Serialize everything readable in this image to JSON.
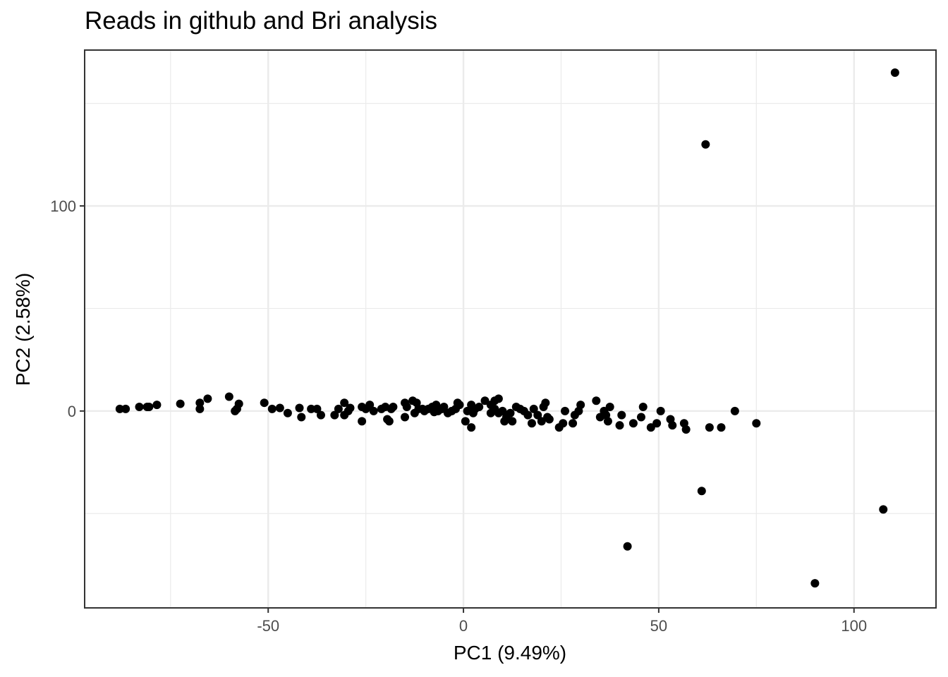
{
  "chart_data": {
    "type": "scatter",
    "title": "Reads in github and Bri analysis",
    "xlabel": "PC1 (9.49%)",
    "ylabel": "PC2 (2.58%)",
    "xlim": [
      -97,
      121
    ],
    "ylim": [
      -96,
      176
    ],
    "x_ticks": [
      -50,
      0,
      50,
      100
    ],
    "x_tick_labels": [
      "-50",
      "0",
      "50",
      "100"
    ],
    "y_ticks": [
      0,
      100
    ],
    "y_tick_labels": [
      "0",
      "100"
    ],
    "grid": true,
    "legend": "none",
    "point_color": "#000000",
    "points": [
      {
        "x": -88,
        "y": 1
      },
      {
        "x": -86.5,
        "y": 1
      },
      {
        "x": -83,
        "y": 2
      },
      {
        "x": -81,
        "y": 2
      },
      {
        "x": -80.5,
        "y": 2
      },
      {
        "x": -78.5,
        "y": 3
      },
      {
        "x": -72.5,
        "y": 3.5
      },
      {
        "x": -67.5,
        "y": 4
      },
      {
        "x": -67.5,
        "y": 1
      },
      {
        "x": -65.5,
        "y": 6
      },
      {
        "x": -60,
        "y": 7
      },
      {
        "x": -58.5,
        "y": 0
      },
      {
        "x": -58,
        "y": 1
      },
      {
        "x": -57.5,
        "y": 3.5
      },
      {
        "x": -51,
        "y": 4
      },
      {
        "x": -49,
        "y": 1
      },
      {
        "x": -47,
        "y": 1.5
      },
      {
        "x": -45,
        "y": -1
      },
      {
        "x": -42,
        "y": 1.5
      },
      {
        "x": -41.5,
        "y": -3
      },
      {
        "x": -39,
        "y": 1
      },
      {
        "x": -37.5,
        "y": 1
      },
      {
        "x": -36.5,
        "y": -2
      },
      {
        "x": -33,
        "y": -2
      },
      {
        "x": -32,
        "y": 1
      },
      {
        "x": -30.5,
        "y": 4
      },
      {
        "x": -30.5,
        "y": -2
      },
      {
        "x": -29.5,
        "y": 0
      },
      {
        "x": -29,
        "y": 1.5
      },
      {
        "x": -26,
        "y": 2
      },
      {
        "x": -26,
        "y": -5
      },
      {
        "x": -25,
        "y": 1
      },
      {
        "x": -24,
        "y": 3
      },
      {
        "x": -23,
        "y": 0
      },
      {
        "x": -21,
        "y": 1
      },
      {
        "x": -20,
        "y": 2
      },
      {
        "x": -19.5,
        "y": -4
      },
      {
        "x": -19,
        "y": -5
      },
      {
        "x": -18.5,
        "y": 1
      },
      {
        "x": -18,
        "y": 2
      },
      {
        "x": -15,
        "y": -3
      },
      {
        "x": -15,
        "y": 4
      },
      {
        "x": -14.5,
        "y": 2
      },
      {
        "x": -13,
        "y": 5
      },
      {
        "x": -12.5,
        "y": -1
      },
      {
        "x": -12,
        "y": 4
      },
      {
        "x": -11.5,
        "y": 1
      },
      {
        "x": -10.5,
        "y": 1
      },
      {
        "x": -10,
        "y": 0
      },
      {
        "x": -9,
        "y": 1
      },
      {
        "x": -8,
        "y": 2
      },
      {
        "x": -7.5,
        "y": -0.5
      },
      {
        "x": -7,
        "y": 3
      },
      {
        "x": -6.5,
        "y": 0
      },
      {
        "x": -5.5,
        "y": 1
      },
      {
        "x": -5,
        "y": 2
      },
      {
        "x": -4,
        "y": -1
      },
      {
        "x": -3,
        "y": 0
      },
      {
        "x": -2,
        "y": 1
      },
      {
        "x": -1.5,
        "y": 4
      },
      {
        "x": -1,
        "y": 3
      },
      {
        "x": 0.5,
        "y": -5
      },
      {
        "x": 1,
        "y": 0
      },
      {
        "x": 2,
        "y": 3
      },
      {
        "x": 2,
        "y": -8
      },
      {
        "x": 2.5,
        "y": -1
      },
      {
        "x": 3,
        "y": 1
      },
      {
        "x": 4,
        "y": 2
      },
      {
        "x": 5.5,
        "y": 5
      },
      {
        "x": 7,
        "y": 3
      },
      {
        "x": 7,
        "y": -1
      },
      {
        "x": 8,
        "y": 1
      },
      {
        "x": 8,
        "y": 5
      },
      {
        "x": 9,
        "y": 6
      },
      {
        "x": 9,
        "y": -1
      },
      {
        "x": 10,
        "y": 0
      },
      {
        "x": 10.5,
        "y": -5
      },
      {
        "x": 11,
        "y": -3
      },
      {
        "x": 12,
        "y": -1
      },
      {
        "x": 12.5,
        "y": -5
      },
      {
        "x": 13.5,
        "y": 2
      },
      {
        "x": 14.5,
        "y": 1
      },
      {
        "x": 15.5,
        "y": 0
      },
      {
        "x": 16.5,
        "y": -2
      },
      {
        "x": 17.5,
        "y": -6
      },
      {
        "x": 18,
        "y": 1
      },
      {
        "x": 19,
        "y": -2
      },
      {
        "x": 20,
        "y": -5
      },
      {
        "x": 20.5,
        "y": 2
      },
      {
        "x": 21,
        "y": 4
      },
      {
        "x": 21.5,
        "y": -3
      },
      {
        "x": 22,
        "y": -4
      },
      {
        "x": 24.5,
        "y": -8
      },
      {
        "x": 25.5,
        "y": -6
      },
      {
        "x": 26,
        "y": 0
      },
      {
        "x": 28,
        "y": -6
      },
      {
        "x": 28.5,
        "y": -2
      },
      {
        "x": 29.5,
        "y": 0
      },
      {
        "x": 30,
        "y": 3
      },
      {
        "x": 34,
        "y": 5
      },
      {
        "x": 35,
        "y": -3
      },
      {
        "x": 36,
        "y": 0
      },
      {
        "x": 36.5,
        "y": -2
      },
      {
        "x": 37,
        "y": -5
      },
      {
        "x": 37.5,
        "y": 2
      },
      {
        "x": 40,
        "y": -7
      },
      {
        "x": 40.5,
        "y": -2
      },
      {
        "x": 43.5,
        "y": -6
      },
      {
        "x": 45.5,
        "y": -3
      },
      {
        "x": 46,
        "y": 2
      },
      {
        "x": 48,
        "y": -8
      },
      {
        "x": 49.5,
        "y": -6
      },
      {
        "x": 50.5,
        "y": 0
      },
      {
        "x": 53,
        "y": -4
      },
      {
        "x": 53.5,
        "y": -7
      },
      {
        "x": 56.5,
        "y": -6
      },
      {
        "x": 57,
        "y": -9
      },
      {
        "x": 63,
        "y": -8
      },
      {
        "x": 66,
        "y": -8
      },
      {
        "x": 69.5,
        "y": 0
      },
      {
        "x": 75,
        "y": -6
      },
      {
        "x": 62,
        "y": 130
      },
      {
        "x": 110.5,
        "y": 165
      },
      {
        "x": 61,
        "y": -39
      },
      {
        "x": 42,
        "y": -66
      },
      {
        "x": 90,
        "y": -84
      },
      {
        "x": 107.5,
        "y": -48
      }
    ]
  }
}
